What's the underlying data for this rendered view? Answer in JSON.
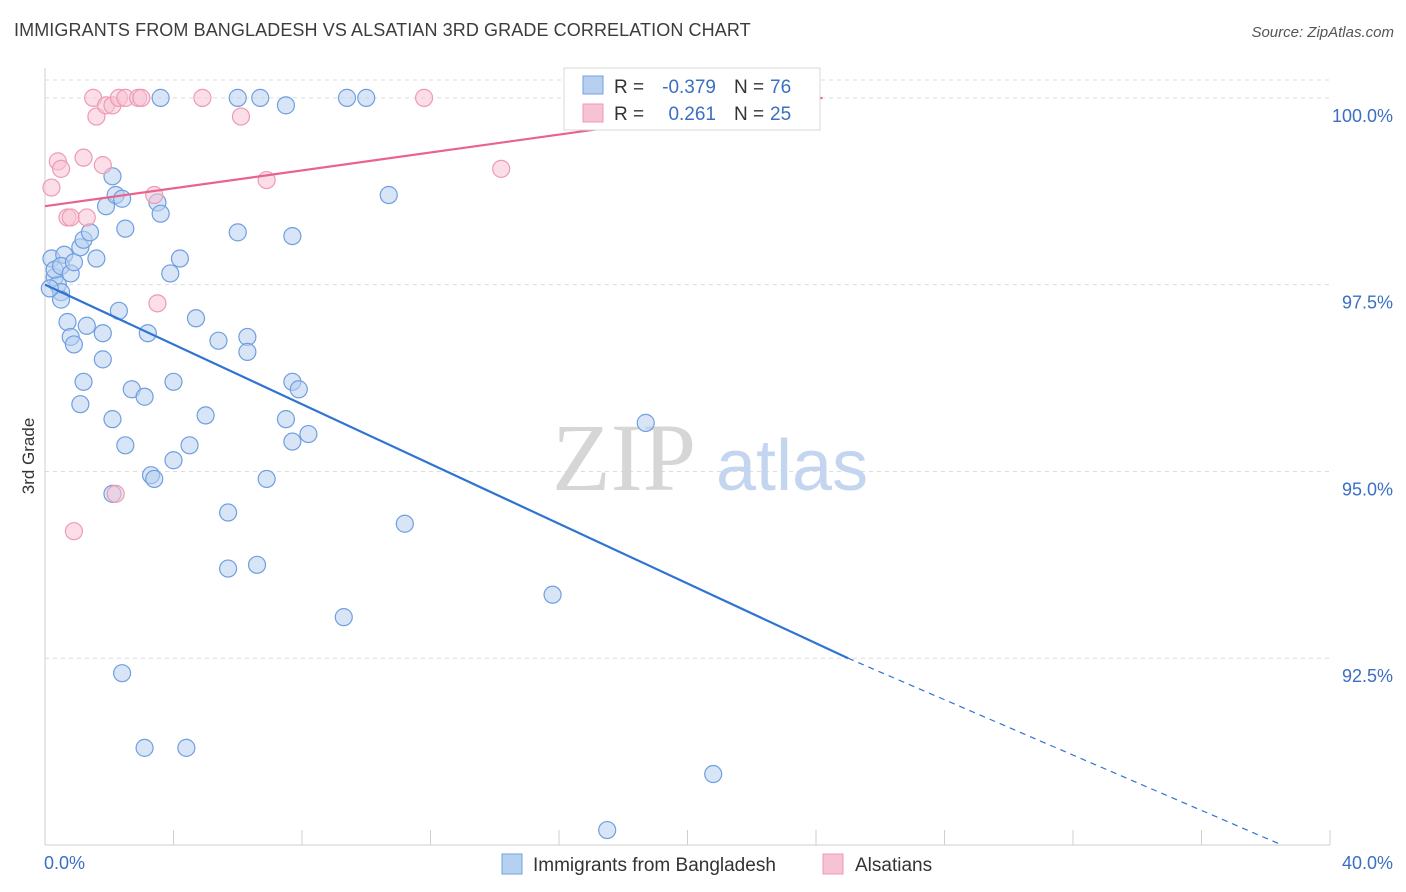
{
  "header": {
    "title": "IMMIGRANTS FROM BANGLADESH VS ALSATIAN 3RD GRADE CORRELATION CHART",
    "source": "Source: ZipAtlas.com"
  },
  "watermark": {
    "zip": "ZIP",
    "atlas": "atlas"
  },
  "colors": {
    "blue_fill": "#b8d0f0",
    "blue_stroke": "#6f9fe0",
    "blue_line": "#2f74d0",
    "pink_fill": "#f7c3d3",
    "pink_stroke": "#ee9ab5",
    "pink_line": "#e8648c",
    "grid": "#dcdcdc",
    "axis_text": "#3a6fc4"
  },
  "chart_data": {
    "type": "scatter",
    "title": "IMMIGRANTS FROM BANGLADESH VS ALSATIAN 3RD GRADE CORRELATION CHART",
    "xlabel": "",
    "ylabel": "3rd Grade",
    "xlim": [
      0,
      40
    ],
    "ylim": [
      90.0,
      100.4
    ],
    "x_tick_labels": [
      "0.0%",
      "40.0%"
    ],
    "y_ticks": [
      {
        "value": 100.0,
        "label": "100.0%"
      },
      {
        "value": 97.5,
        "label": "97.5%"
      },
      {
        "value": 95.0,
        "label": "95.0%"
      },
      {
        "value": 92.5,
        "label": "92.5%"
      }
    ],
    "grid": "horizontal dashed",
    "legend_position": "bottom-center",
    "stats": [
      {
        "r_label": "R =",
        "r_value": "-0.379",
        "n_label": "N =",
        "n_value": "76"
      },
      {
        "r_label": "R =",
        "r_value": "0.261",
        "n_label": "N =",
        "n_value": "25"
      }
    ],
    "series": [
      {
        "name": "Immigrants from Bangladesh",
        "color": "#b8d0f0",
        "trend": {
          "x": [
            0.0,
            25.0,
            38.5
          ],
          "y": [
            97.5,
            92.5,
            90.0
          ],
          "dashed_after_x": 25.0
        },
        "points": [
          [
            0.2,
            97.85
          ],
          [
            0.3,
            97.6
          ],
          [
            0.4,
            97.5
          ],
          [
            0.3,
            97.7
          ],
          [
            0.5,
            97.4
          ],
          [
            0.6,
            97.9
          ],
          [
            0.5,
            97.75
          ],
          [
            0.8,
            97.65
          ],
          [
            0.9,
            97.8
          ],
          [
            1.1,
            98.0
          ],
          [
            1.2,
            98.1
          ],
          [
            1.4,
            98.2
          ],
          [
            1.6,
            97.85
          ],
          [
            1.9,
            98.55
          ],
          [
            2.1,
            98.95
          ],
          [
            2.2,
            98.7
          ],
          [
            2.4,
            98.65
          ],
          [
            2.5,
            98.25
          ],
          [
            3.5,
            98.6
          ],
          [
            3.6,
            98.45
          ],
          [
            3.9,
            97.65
          ],
          [
            4.2,
            97.85
          ],
          [
            6.0,
            98.2
          ],
          [
            7.7,
            98.15
          ],
          [
            10.7,
            98.7
          ],
          [
            0.5,
            97.3
          ],
          [
            0.7,
            97.0
          ],
          [
            0.8,
            96.8
          ],
          [
            0.9,
            96.7
          ],
          [
            1.3,
            96.95
          ],
          [
            1.8,
            96.85
          ],
          [
            2.3,
            97.15
          ],
          [
            3.2,
            96.85
          ],
          [
            4.7,
            97.05
          ],
          [
            5.4,
            96.75
          ],
          [
            6.3,
            96.8
          ],
          [
            6.3,
            96.6
          ],
          [
            1.8,
            96.5
          ],
          [
            1.2,
            96.2
          ],
          [
            2.7,
            96.1
          ],
          [
            3.1,
            96.0
          ],
          [
            4.0,
            96.2
          ],
          [
            7.7,
            96.2
          ],
          [
            7.9,
            96.1
          ],
          [
            1.1,
            95.9
          ],
          [
            2.1,
            95.7
          ],
          [
            5.0,
            95.75
          ],
          [
            7.5,
            95.7
          ],
          [
            7.7,
            95.4
          ],
          [
            8.2,
            95.5
          ],
          [
            2.5,
            95.35
          ],
          [
            4.5,
            95.35
          ],
          [
            4.0,
            95.15
          ],
          [
            3.3,
            94.95
          ],
          [
            3.4,
            94.9
          ],
          [
            6.9,
            94.9
          ],
          [
            2.1,
            94.7
          ],
          [
            5.7,
            94.45
          ],
          [
            11.2,
            94.3
          ],
          [
            5.7,
            93.7
          ],
          [
            6.6,
            93.75
          ],
          [
            9.3,
            93.05
          ],
          [
            15.8,
            93.35
          ],
          [
            2.4,
            92.3
          ],
          [
            3.1,
            91.3
          ],
          [
            4.4,
            91.3
          ],
          [
            20.8,
            90.95
          ],
          [
            17.5,
            90.2
          ],
          [
            3.6,
            100.0
          ],
          [
            6.0,
            100.0
          ],
          [
            6.7,
            100.0
          ],
          [
            7.5,
            99.9
          ],
          [
            9.4,
            100.0
          ],
          [
            10.0,
            100.0
          ],
          [
            18.7,
            95.65
          ],
          [
            0.15,
            97.45
          ]
        ]
      },
      {
        "name": "Alsatians",
        "color": "#f7c3d3",
        "trend": {
          "x": [
            0.0,
            24.2
          ],
          "y": [
            98.55,
            100.0
          ]
        },
        "points": [
          [
            0.2,
            98.8
          ],
          [
            0.4,
            99.15
          ],
          [
            0.5,
            99.05
          ],
          [
            0.7,
            98.4
          ],
          [
            0.8,
            98.4
          ],
          [
            1.2,
            99.2
          ],
          [
            1.3,
            98.4
          ],
          [
            1.5,
            100.0
          ],
          [
            1.6,
            99.75
          ],
          [
            1.8,
            99.1
          ],
          [
            1.9,
            99.9
          ],
          [
            2.1,
            99.9
          ],
          [
            2.3,
            100.0
          ],
          [
            2.5,
            100.0
          ],
          [
            2.9,
            100.0
          ],
          [
            3.0,
            100.0
          ],
          [
            3.4,
            98.7
          ],
          [
            3.5,
            97.25
          ],
          [
            4.9,
            100.0
          ],
          [
            6.1,
            99.75
          ],
          [
            6.9,
            98.9
          ],
          [
            11.8,
            100.0
          ],
          [
            14.2,
            99.05
          ],
          [
            0.9,
            94.2
          ],
          [
            2.2,
            94.7
          ]
        ]
      }
    ]
  }
}
